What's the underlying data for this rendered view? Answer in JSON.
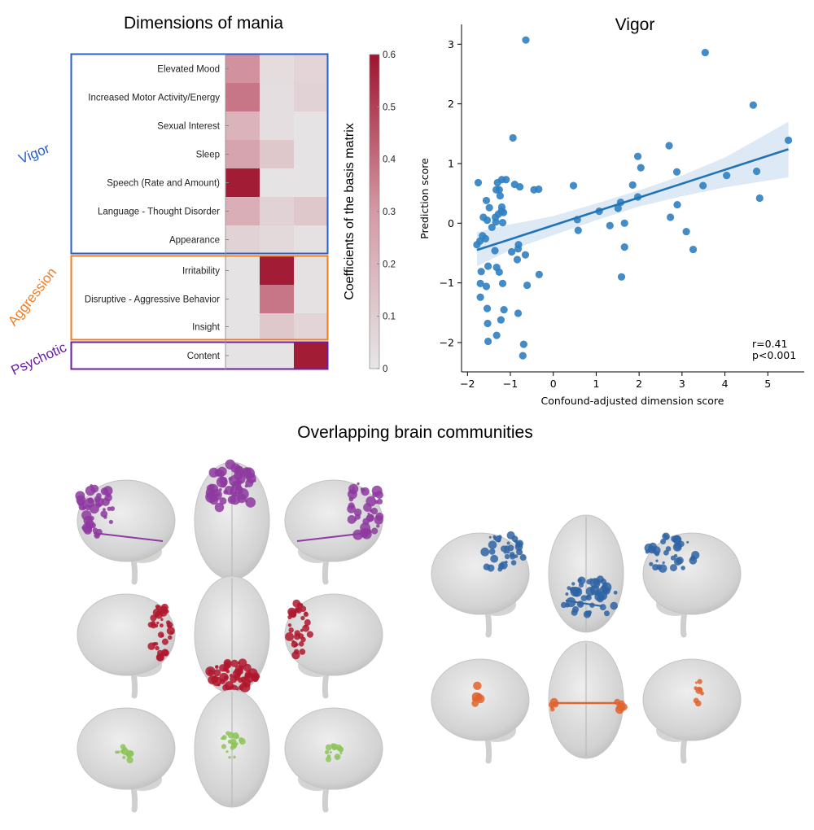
{
  "colors": {
    "vigor": "#2a5fc7",
    "aggression": "#ef7d22",
    "psychotic": "#6a1fa0",
    "heat_max": "#a0132e",
    "heat_min": "#e6e6e6",
    "point": "#2f7fc1",
    "fit": "#2073b4",
    "ci": "#c6dbef"
  },
  "chart_data": [
    {
      "type": "heatmap",
      "title": "Dimensions of mania",
      "rows": [
        "Elevated Mood",
        "Increased Motor Activity/Energy",
        "Sexual Interest",
        "Sleep",
        "Speech (Rate and Amount)",
        "Language - Thought Disorder",
        "Appearance",
        "Irritability",
        "Disruptive - Aggressive Behavior",
        "Insight",
        "Content"
      ],
      "values": [
        [
          0.32,
          0.04,
          0.07
        ],
        [
          0.38,
          0.03,
          0.08
        ],
        [
          0.2,
          0.03,
          0.01
        ],
        [
          0.26,
          0.12,
          0.01
        ],
        [
          0.58,
          0.01,
          0.01
        ],
        [
          0.22,
          0.08,
          0.12
        ],
        [
          0.08,
          0.05,
          0.02
        ],
        [
          0.01,
          0.58,
          0.02
        ],
        [
          0.01,
          0.38,
          0.02
        ],
        [
          0.01,
          0.12,
          0.07
        ],
        [
          0.01,
          0.01,
          0.58
        ]
      ],
      "groups": [
        {
          "name": "Vigor",
          "rows": [
            0,
            6
          ]
        },
        {
          "name": "Aggression",
          "rows": [
            7,
            9
          ]
        },
        {
          "name": "Psychotic",
          "rows": [
            10,
            10
          ]
        }
      ],
      "colorbar": {
        "label": "Coefficients of the basis matrix",
        "range": [
          0,
          0.6
        ],
        "ticks": [
          "0",
          "0.1",
          "0.2",
          "0.3",
          "0.4",
          "0.5",
          "0.6"
        ]
      }
    },
    {
      "type": "scatter",
      "title": "Vigor",
      "xlabel": "Confound-adjusted dimension score",
      "ylabel": "Prediction score",
      "xlim": [
        -2.1,
        5.9
      ],
      "ylim": [
        -2.5,
        3.3
      ],
      "xticks": [
        "−2",
        "−1",
        "0",
        "1",
        "2",
        "3",
        "4",
        "5"
      ],
      "yticks": [
        "−2",
        "−1",
        "0",
        "1",
        "2",
        "3"
      ],
      "annotation": [
        "r=0.41",
        "p<0.001"
      ],
      "fit": {
        "x": [
          -1.78,
          5.48
        ],
        "y": [
          -0.45,
          1.24
        ]
      },
      "ci": {
        "x": [
          -1.78,
          -1,
          0,
          1,
          2,
          3,
          4,
          5.48
        ],
        "lower": [
          -0.72,
          -0.45,
          -0.2,
          0.05,
          0.28,
          0.45,
          0.6,
          0.77
        ],
        "upper": [
          -0.15,
          -0.02,
          0.12,
          0.33,
          0.55,
          0.8,
          1.1,
          1.7
        ]
      },
      "points": [
        [
          -0.64,
          3.07
        ],
        [
          3.54,
          2.86
        ],
        [
          4.66,
          1.98
        ],
        [
          -0.94,
          1.43
        ],
        [
          5.48,
          1.39
        ],
        [
          2.7,
          1.3
        ],
        [
          1.97,
          1.12
        ],
        [
          2.04,
          0.93
        ],
        [
          2.88,
          0.86
        ],
        [
          4.74,
          0.87
        ],
        [
          4.04,
          0.8
        ],
        [
          -1.75,
          0.68
        ],
        [
          -1.3,
          0.68
        ],
        [
          -1.2,
          0.73
        ],
        [
          -1.1,
          0.73
        ],
        [
          -0.9,
          0.65
        ],
        [
          -0.78,
          0.61
        ],
        [
          -0.45,
          0.56
        ],
        [
          -0.34,
          0.57
        ],
        [
          0.47,
          0.63
        ],
        [
          1.85,
          0.64
        ],
        [
          3.49,
          0.63
        ],
        [
          -1.33,
          0.56
        ],
        [
          -1.26,
          0.56
        ],
        [
          -1.24,
          0.46
        ],
        [
          -1.56,
          0.38
        ],
        [
          1.97,
          0.44
        ],
        [
          4.81,
          0.42
        ],
        [
          -1.49,
          0.26
        ],
        [
          -1.2,
          0.27
        ],
        [
          -1.16,
          0.18
        ],
        [
          -1.21,
          0.2
        ],
        [
          -1.28,
          0.15
        ],
        [
          1.57,
          0.35
        ],
        [
          1.51,
          0.25
        ],
        [
          1.07,
          0.2
        ],
        [
          2.89,
          0.31
        ],
        [
          -1.63,
          0.1
        ],
        [
          -1.54,
          0.05
        ],
        [
          -1.35,
          0.1
        ],
        [
          -1.34,
          0.02
        ],
        [
          -1.18,
          0.01
        ],
        [
          -1.43,
          -0.07
        ],
        [
          0.56,
          0.06
        ],
        [
          2.73,
          0.1
        ],
        [
          1.66,
          0.0
        ],
        [
          1.32,
          -0.04
        ],
        [
          0.58,
          -0.12
        ],
        [
          3.1,
          -0.14
        ],
        [
          -1.65,
          -0.21
        ],
        [
          -1.58,
          -0.26
        ],
        [
          -1.71,
          -0.3
        ],
        [
          -1.78,
          -0.36
        ],
        [
          -1.36,
          -0.46
        ],
        [
          -0.97,
          -0.48
        ],
        [
          -0.81,
          -0.36
        ],
        [
          -0.82,
          -0.43
        ],
        [
          -0.65,
          -0.53
        ],
        [
          -0.84,
          -0.61
        ],
        [
          1.66,
          -0.4
        ],
        [
          3.26,
          -0.44
        ],
        [
          -1.52,
          -0.72
        ],
        [
          -1.32,
          -0.74
        ],
        [
          -1.68,
          -0.81
        ],
        [
          -1.26,
          -0.82
        ],
        [
          -0.33,
          -0.86
        ],
        [
          1.59,
          -0.9
        ],
        [
          -1.7,
          -1.01
        ],
        [
          -1.18,
          -1.01
        ],
        [
          -1.56,
          -1.06
        ],
        [
          -0.61,
          -1.04
        ],
        [
          -1.7,
          -1.24
        ],
        [
          -1.54,
          -1.43
        ],
        [
          -1.15,
          -1.45
        ],
        [
          -0.82,
          -1.51
        ],
        [
          -1.22,
          -1.62
        ],
        [
          -1.53,
          -1.68
        ],
        [
          -1.32,
          -1.88
        ],
        [
          -1.52,
          -1.98
        ],
        [
          -0.69,
          -2.03
        ],
        [
          -0.71,
          -2.22
        ]
      ]
    }
  ],
  "brains": {
    "title": "Overlapping brain communities",
    "communities": [
      {
        "name": "purple",
        "color": "#8e3aa0",
        "region": "frontal"
      },
      {
        "name": "red",
        "color": "#b0172e",
        "region": "occipital"
      },
      {
        "name": "green",
        "color": "#8fc45a",
        "region": "central"
      },
      {
        "name": "blue",
        "color": "#2f64a3",
        "region": "parietal"
      },
      {
        "name": "orange",
        "color": "#e0642e",
        "region": "temporal"
      }
    ]
  }
}
